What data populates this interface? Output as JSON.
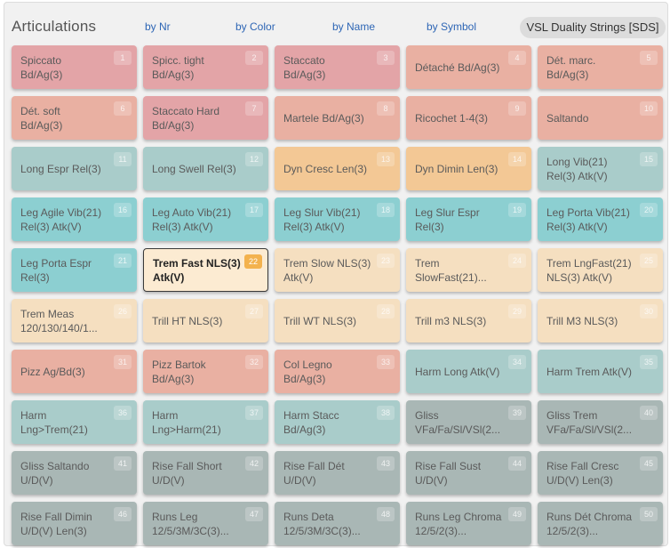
{
  "header": {
    "title": "Articulations",
    "sort_options": [
      "by Nr",
      "by Color",
      "by Name",
      "by Symbol"
    ],
    "library": "VSL Duality Strings [SDS]"
  },
  "colors": {
    "red": "#e3a4a7",
    "salmon": "#e9b0a2",
    "teal_light": "#a9ccca",
    "teal": "#8ccfd1",
    "orange": "#f3c895",
    "cream": "#f5dfc0",
    "grey": "#a9b7b5",
    "selected": "#fcebd2"
  },
  "articulations": [
    {
      "nr": "1",
      "label": "Spiccato\nBd/Ag(3)",
      "color": "red"
    },
    {
      "nr": "2",
      "label": "Spicc. tight\nBd/Ag(3)",
      "color": "red"
    },
    {
      "nr": "3",
      "label": "Staccato\nBd/Ag(3)",
      "color": "red"
    },
    {
      "nr": "4",
      "label": "Détaché Bd/Ag(3)",
      "color": "salmon"
    },
    {
      "nr": "5",
      "label": "Dét. marc.\nBd/Ag(3)",
      "color": "salmon"
    },
    {
      "nr": "6",
      "label": "Dét. soft\nBd/Ag(3)",
      "color": "salmon"
    },
    {
      "nr": "7",
      "label": "Staccato Hard\nBd/Ag(3)",
      "color": "red"
    },
    {
      "nr": "8",
      "label": "Martele Bd/Ag(3)",
      "color": "salmon"
    },
    {
      "nr": "9",
      "label": "Ricochet 1-4(3)",
      "color": "salmon"
    },
    {
      "nr": "10",
      "label": "Saltando",
      "color": "salmon"
    },
    {
      "nr": "11",
      "label": "Long Espr Rel(3)",
      "color": "teal_light"
    },
    {
      "nr": "12",
      "label": "Long Swell Rel(3)",
      "color": "teal_light"
    },
    {
      "nr": "13",
      "label": "Dyn Cresc Len(3)",
      "color": "orange"
    },
    {
      "nr": "14",
      "label": "Dyn Dimin Len(3)",
      "color": "orange"
    },
    {
      "nr": "15",
      "label": "Long Vib(21)\nRel(3) Atk(V)",
      "color": "teal_light"
    },
    {
      "nr": "16",
      "label": "Leg Agile Vib(21)\nRel(3) Atk(V)",
      "color": "teal"
    },
    {
      "nr": "17",
      "label": "Leg Auto Vib(21)\nRel(3) Atk(V)",
      "color": "teal"
    },
    {
      "nr": "18",
      "label": "Leg Slur Vib(21)\nRel(3) Atk(V)",
      "color": "teal"
    },
    {
      "nr": "19",
      "label": "Leg Slur Espr\nRel(3)",
      "color": "teal"
    },
    {
      "nr": "20",
      "label": "Leg Porta Vib(21)\nRel(3) Atk(V)",
      "color": "teal"
    },
    {
      "nr": "21",
      "label": "Leg Porta Espr\nRel(3)",
      "color": "teal"
    },
    {
      "nr": "22",
      "label": "Trem Fast NLS(3)\nAtk(V)",
      "color": "selected",
      "selected": true
    },
    {
      "nr": "23",
      "label": "Trem Slow NLS(3)\nAtk(V)",
      "color": "cream"
    },
    {
      "nr": "24",
      "label": "Trem\nSlowFast(21)...",
      "color": "cream"
    },
    {
      "nr": "25",
      "label": "Trem LngFast(21)\nNLS(3) Atk(V)",
      "color": "cream"
    },
    {
      "nr": "26",
      "label": "Trem Meas\n120/130/140/1...",
      "color": "cream"
    },
    {
      "nr": "27",
      "label": "Trill HT NLS(3)",
      "color": "cream"
    },
    {
      "nr": "28",
      "label": "Trill WT NLS(3)",
      "color": "cream"
    },
    {
      "nr": "29",
      "label": "Trill m3 NLS(3)",
      "color": "cream"
    },
    {
      "nr": "30",
      "label": "Trill M3 NLS(3)",
      "color": "cream"
    },
    {
      "nr": "31",
      "label": "Pizz Ag/Bd(3)",
      "color": "salmon"
    },
    {
      "nr": "32",
      "label": "Pizz Bartok\nBd/Ag(3)",
      "color": "salmon"
    },
    {
      "nr": "33",
      "label": "Col Legno\nBd/Ag(3)",
      "color": "salmon"
    },
    {
      "nr": "34",
      "label": "Harm Long Atk(V)",
      "color": "teal_light"
    },
    {
      "nr": "35",
      "label": "Harm Trem Atk(V)",
      "color": "teal_light"
    },
    {
      "nr": "36",
      "label": "Harm\nLng>Trem(21)",
      "color": "teal_light"
    },
    {
      "nr": "37",
      "label": "Harm\nLng>Harm(21)",
      "color": "teal_light"
    },
    {
      "nr": "38",
      "label": "Harm Stacc\nBd/Ag(3)",
      "color": "teal_light"
    },
    {
      "nr": "39",
      "label": "Gliss\nVFa/Fa/Sl/VSl(2...",
      "color": "grey"
    },
    {
      "nr": "40",
      "label": "Gliss Trem\nVFa/Fa/Sl/VSl(2...",
      "color": "grey"
    },
    {
      "nr": "41",
      "label": "Gliss Saltando\nU/D(V)",
      "color": "grey"
    },
    {
      "nr": "42",
      "label": "Rise Fall Short\nU/D(V)",
      "color": "grey"
    },
    {
      "nr": "43",
      "label": "Rise Fall Dét\nU/D(V)",
      "color": "grey"
    },
    {
      "nr": "44",
      "label": "Rise Fall Sust\nU/D(V)",
      "color": "grey"
    },
    {
      "nr": "45",
      "label": "Rise Fall Cresc\nU/D(V) Len(3)",
      "color": "grey"
    },
    {
      "nr": "46",
      "label": "Rise Fall Dimin\nU/D(V) Len(3)",
      "color": "grey"
    },
    {
      "nr": "47",
      "label": "Runs Leg\n12/5/3M/3C(3)...",
      "color": "grey"
    },
    {
      "nr": "48",
      "label": "Runs Deta\n12/5/3M/3C(3)...",
      "color": "grey"
    },
    {
      "nr": "49",
      "label": "Runs Leg Chroma\n12/5/2(3)...",
      "color": "grey"
    },
    {
      "nr": "50",
      "label": "Runs Dét Chroma\n12/5/2(3)...",
      "color": "grey"
    }
  ]
}
